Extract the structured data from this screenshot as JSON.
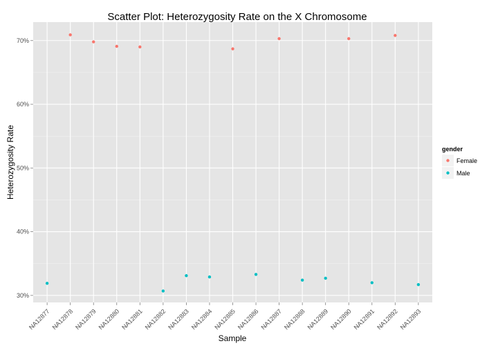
{
  "chart_data": {
    "type": "scatter",
    "title": "Scatter Plot: Heterozygosity Rate on the X Chromosome",
    "xlabel": "Sample",
    "ylabel": "Heterozygosity Rate",
    "categories": [
      "NA12877",
      "NA12878",
      "NA12879",
      "NA12880",
      "NA12881",
      "NA12882",
      "NA12883",
      "NA12884",
      "NA12885",
      "NA12886",
      "NA12887",
      "NA12888",
      "NA12889",
      "NA12890",
      "NA12891",
      "NA12892",
      "NA12893"
    ],
    "yticks": [
      0.3,
      0.4,
      0.5,
      0.6,
      0.7
    ],
    "ytick_labels": [
      "30%",
      "40%",
      "50%",
      "60%",
      "70%"
    ],
    "ylim": [
      0.289,
      0.729
    ],
    "grid": true,
    "legend": {
      "title": "gender",
      "position": "right"
    },
    "series": [
      {
        "name": "Female",
        "color": "#F8766D",
        "points": [
          {
            "x": "NA12878",
            "y": 0.709
          },
          {
            "x": "NA12879",
            "y": 0.698
          },
          {
            "x": "NA12880",
            "y": 0.691
          },
          {
            "x": "NA12881",
            "y": 0.69
          },
          {
            "x": "NA12885",
            "y": 0.687
          },
          {
            "x": "NA12887",
            "y": 0.703
          },
          {
            "x": "NA12890",
            "y": 0.703
          },
          {
            "x": "NA12892",
            "y": 0.708
          }
        ]
      },
      {
        "name": "Male",
        "color": "#00BFC4",
        "points": [
          {
            "x": "NA12877",
            "y": 0.319
          },
          {
            "x": "NA12882",
            "y": 0.307
          },
          {
            "x": "NA12883",
            "y": 0.331
          },
          {
            "x": "NA12884",
            "y": 0.329
          },
          {
            "x": "NA12886",
            "y": 0.333
          },
          {
            "x": "NA12888",
            "y": 0.324
          },
          {
            "x": "NA12889",
            "y": 0.327
          },
          {
            "x": "NA12891",
            "y": 0.32
          },
          {
            "x": "NA12893",
            "y": 0.317
          }
        ]
      }
    ]
  }
}
